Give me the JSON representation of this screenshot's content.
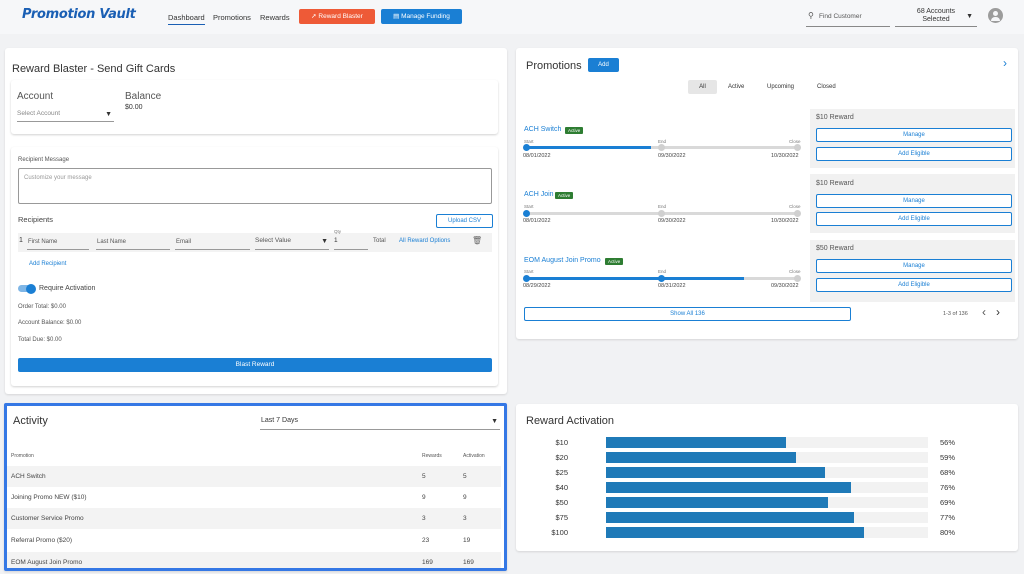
{
  "header": {
    "logo": "Promotion Vault",
    "nav": [
      "Dashboard",
      "Promotions",
      "Rewards"
    ],
    "reward_blaster": "Reward Blaster",
    "manage_funding": "Manage Funding",
    "find_customer": "Find Customer",
    "accounts_selected": "68 Accounts Selected"
  },
  "blaster": {
    "title": "Reward Blaster - Send Gift Cards",
    "account_label": "Account",
    "account_placeholder": "Select Account",
    "balance_label": "Balance",
    "balance_value": "$0.00",
    "recipient_message_label": "Recipient Message",
    "message_placeholder": "Customize your message",
    "recipients_label": "Recipients",
    "upload_csv": "Upload CSV",
    "row_index": "1",
    "first_name": "First Name",
    "last_name": "Last Name",
    "email": "Email",
    "select_value": "Select Value",
    "qty_label": "Qty",
    "qty_value": "1",
    "total_label": "Total",
    "all_reward_options": "All Reward Options",
    "add_recipient": "Add Recipient",
    "require_activation": "Require Activation",
    "order_total": "Order Total: $0.00",
    "account_balance": "Account Balance: $0.00",
    "total_due": "Total Due: $0.00",
    "blast_button": "Blast Reward"
  },
  "promotions": {
    "title": "Promotions",
    "add_button": "Add",
    "filters": [
      "All",
      "Active",
      "Upcoming",
      "Closed"
    ],
    "start": "Start",
    "end": "End",
    "close": "Close",
    "manage": "Manage",
    "add_eligible": "Add Eligible",
    "items": [
      {
        "name": "ACH Switch",
        "status": "Active",
        "start": "08/01/2022",
        "end": "09/30/2022",
        "close": "10/30/2022",
        "reward": "$10 Reward",
        "progress": 0.46
      },
      {
        "name": "ACH Join",
        "status": "Active",
        "start": "08/01/2022",
        "end": "09/30/2022",
        "close": "10/30/2022",
        "reward": "$10 Reward",
        "progress": 0
      },
      {
        "name": "EOM August Join Promo",
        "status": "Active",
        "start": "08/29/2022",
        "end": "08/31/2022",
        "close": "09/30/2022",
        "reward": "$50 Reward",
        "progress": 0.8
      }
    ],
    "show_all": "Show All 136",
    "pager": "1-3 of 136"
  },
  "activity": {
    "title": "Activity",
    "range": "Last 7 Days",
    "columns": [
      "Promotion",
      "Rewards",
      "Activation"
    ],
    "rows": [
      [
        "ACH Switch",
        "5",
        "5"
      ],
      [
        "Joining Promo NEW ($10)",
        "9",
        "9"
      ],
      [
        "Customer Service Promo",
        "3",
        "3"
      ],
      [
        "Referral Promo ($20)",
        "23",
        "19"
      ],
      [
        "EOM August Join Promo",
        "169",
        "169"
      ]
    ]
  },
  "chart_data": {
    "type": "bar",
    "title": "Reward Activation",
    "categories": [
      "$10",
      "$20",
      "$25",
      "$40",
      "$50",
      "$75",
      "$100"
    ],
    "values": [
      56,
      59,
      68,
      76,
      69,
      77,
      80
    ],
    "labels": [
      "56%",
      "59%",
      "68%",
      "76%",
      "69%",
      "77%",
      "80%"
    ],
    "ylim": [
      0,
      100
    ]
  },
  "colors": {
    "accent": "#1a7fd4",
    "blaster_orange": "#ee5a37",
    "active_badge": "#2e7d32",
    "bar": "#1f7ab8"
  }
}
